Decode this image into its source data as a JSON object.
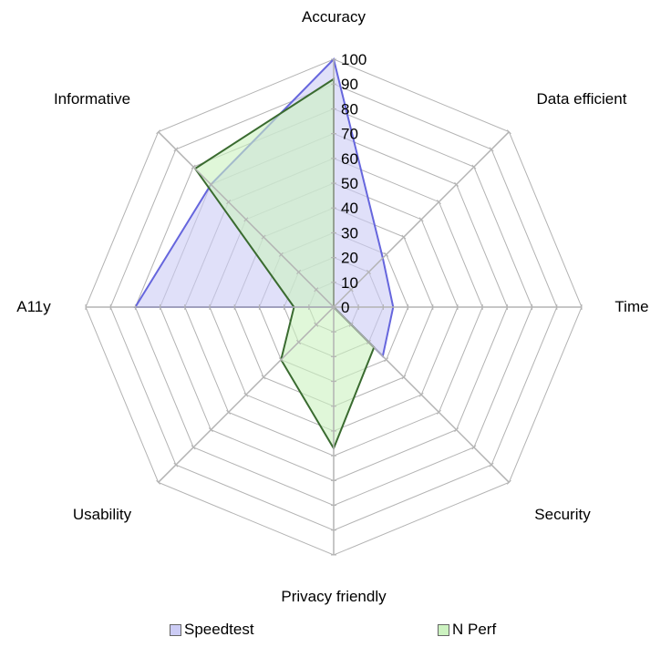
{
  "chart_data": {
    "type": "radar",
    "title": "",
    "categories": [
      "Accuracy",
      "Data efficient",
      "Time",
      "Security",
      "Privacy friendly",
      "Usability",
      "A11y",
      "Informative"
    ],
    "series": [
      {
        "name": "Speedtest",
        "values": [
          100,
          28,
          24,
          28,
          0,
          0,
          80,
          70
        ],
        "fill": "#ccccf5",
        "stroke": "#6666dd"
      },
      {
        "name": "N Perf",
        "values": [
          92,
          0,
          0,
          23,
          57,
          30,
          16,
          79
        ],
        "fill": "#ccf2c0",
        "stroke": "#3a6b30"
      }
    ],
    "rlim": [
      0,
      100
    ],
    "ticks": [
      "0",
      "10",
      "20",
      "30",
      "40",
      "50",
      "60",
      "70",
      "80",
      "90",
      "100"
    ],
    "grid": true,
    "legend_position": "bottom"
  },
  "legend": {
    "items": [
      {
        "label": "Speedtest",
        "color": "#ccccf5"
      },
      {
        "label": "N Perf",
        "color": "#ccf2c0"
      }
    ]
  }
}
